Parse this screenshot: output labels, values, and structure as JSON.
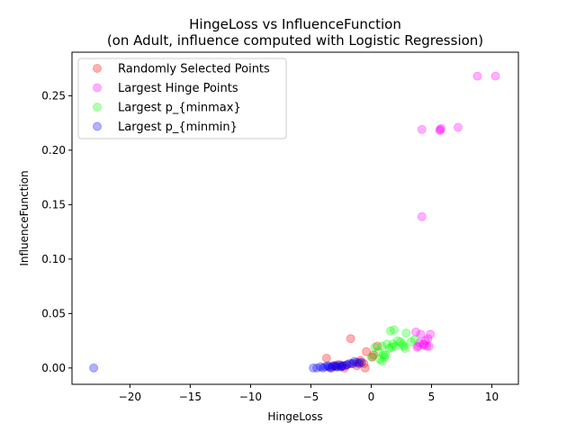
{
  "chart_data": {
    "type": "scatter",
    "title": "HingeLoss vs InfluenceFunction",
    "subtitle": "(on Adult, influence computed with Logistic Regression)",
    "xlabel": "HingeLoss",
    "ylabel": "InfluenceFunction",
    "xlim": [
      -24.8,
      12.2
    ],
    "ylim": [
      -0.015,
      0.29
    ],
    "xticks": [
      -20,
      -15,
      -10,
      -5,
      0,
      5,
      10
    ],
    "xtick_labels": [
      "−20",
      "−15",
      "−10",
      "−5",
      "0",
      "5",
      "10"
    ],
    "yticks": [
      0.0,
      0.05,
      0.1,
      0.15,
      0.2,
      0.25
    ],
    "ytick_labels": [
      "0.00",
      "0.05",
      "0.10",
      "0.15",
      "0.20",
      "0.25"
    ],
    "grid": false,
    "legend_position": "top-left",
    "series": [
      {
        "name": "Randomly Selected Points",
        "color": "#ff0000",
        "points": [
          [
            -3.7,
            0.009
          ],
          [
            -1.7,
            0.027
          ],
          [
            -0.5,
            0.0
          ],
          [
            -0.4,
            0.015
          ],
          [
            0.2,
            0.012
          ],
          [
            0.5,
            0.02
          ],
          [
            -1.0,
            0.005
          ],
          [
            -2.0,
            0.003
          ],
          [
            -2.5,
            0.001
          ],
          [
            -3.0,
            0.002
          ],
          [
            -3.4,
            0.0
          ],
          [
            -2.2,
            0.0
          ],
          [
            -1.5,
            0.004
          ],
          [
            -0.9,
            0.007
          ],
          [
            -0.6,
            0.004
          ],
          [
            -2.8,
            0.003
          ],
          [
            -1.2,
            0.002
          ],
          [
            0.1,
            0.01
          ],
          [
            -2.4,
            0.002
          ],
          [
            -3.2,
            0.001
          ]
        ]
      },
      {
        "name": "Largest Hinge Points",
        "color": "#ff00ff",
        "points": [
          [
            8.8,
            0.268
          ],
          [
            10.3,
            0.268
          ],
          [
            4.2,
            0.219
          ],
          [
            5.7,
            0.219
          ],
          [
            5.8,
            0.22
          ],
          [
            5.7,
            0.218
          ],
          [
            7.2,
            0.221
          ],
          [
            4.2,
            0.139
          ],
          [
            3.7,
            0.033
          ],
          [
            4.1,
            0.031
          ],
          [
            4.9,
            0.031
          ],
          [
            4.5,
            0.025
          ],
          [
            3.9,
            0.02
          ],
          [
            4.3,
            0.022
          ],
          [
            4.6,
            0.02
          ],
          [
            4.8,
            0.02
          ],
          [
            4.4,
            0.021
          ],
          [
            4.0,
            0.023
          ],
          [
            4.7,
            0.027
          ],
          [
            3.8,
            0.019
          ]
        ]
      },
      {
        "name": "Largest p_{minmax}",
        "color": "#00ff00",
        "points": [
          [
            1.6,
            0.034
          ],
          [
            1.9,
            0.035
          ],
          [
            2.9,
            0.032
          ],
          [
            2.2,
            0.025
          ],
          [
            1.3,
            0.022
          ],
          [
            0.9,
            0.02
          ],
          [
            0.3,
            0.019
          ],
          [
            2.6,
            0.022
          ],
          [
            3.3,
            0.024
          ],
          [
            1.7,
            0.019
          ],
          [
            2.0,
            0.02
          ],
          [
            2.8,
            0.018
          ],
          [
            1.0,
            0.012
          ],
          [
            1.1,
            0.01
          ],
          [
            0.7,
            0.008
          ],
          [
            0.9,
            0.006
          ],
          [
            1.2,
            0.012
          ],
          [
            1.5,
            0.018
          ],
          [
            0.0,
            0.01
          ],
          [
            2.4,
            0.024
          ],
          [
            2.7,
            0.02
          ],
          [
            1.8,
            0.022
          ],
          [
            3.6,
            0.026
          ],
          [
            0.6,
            0.015
          ]
        ]
      },
      {
        "name": "Largest p_{minmin}",
        "color": "#0000ff",
        "points": [
          [
            -23.0,
            0.0
          ],
          [
            -4.8,
            0.0
          ],
          [
            -4.2,
            0.001
          ],
          [
            -4.0,
            0.0
          ],
          [
            -3.5,
            0.001
          ],
          [
            -3.2,
            0.002
          ],
          [
            -3.0,
            0.002
          ],
          [
            -2.8,
            0.001
          ],
          [
            -2.6,
            0.003
          ],
          [
            -2.4,
            0.002
          ],
          [
            -2.0,
            0.003
          ],
          [
            -1.6,
            0.004
          ],
          [
            -1.2,
            0.005
          ],
          [
            -1.0,
            0.004
          ],
          [
            -1.4,
            0.006
          ],
          [
            -3.8,
            0.001
          ],
          [
            -3.3,
            0.0
          ],
          [
            -2.9,
            0.001
          ],
          [
            -2.2,
            0.002
          ],
          [
            -4.5,
            0.0
          ],
          [
            -3.6,
            0.002
          ],
          [
            -1.8,
            0.004
          ],
          [
            -0.8,
            0.005
          ],
          [
            -2.5,
            0.001
          ]
        ]
      }
    ]
  }
}
